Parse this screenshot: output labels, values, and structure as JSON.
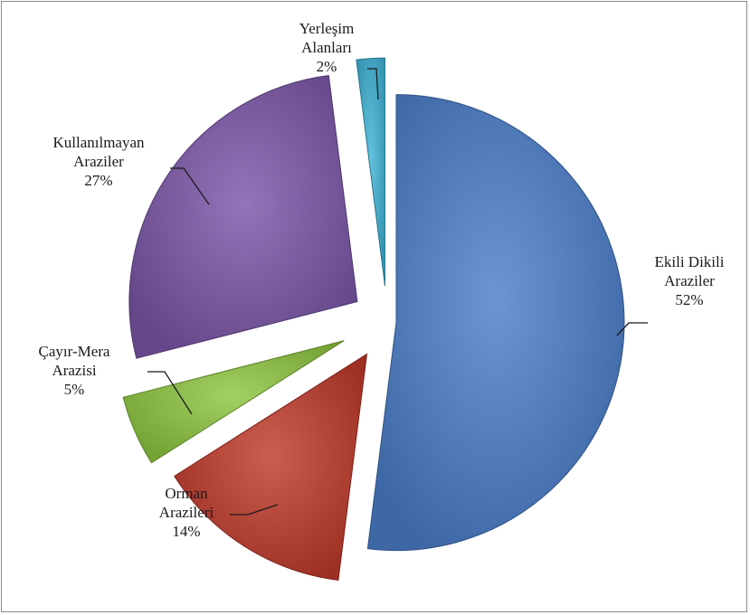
{
  "chart_data": {
    "type": "pie",
    "title": "",
    "exploded": true,
    "slices": [
      {
        "label_lines": [
          "Ekili Dikili",
          "Araziler"
        ],
        "value_label": "52%",
        "value": 52,
        "color": "#4a7ec9"
      },
      {
        "label_lines": [
          "Orman",
          "Arazileri"
        ],
        "value_label": "14%",
        "value": 14,
        "color": "#c0392b"
      },
      {
        "label_lines": [
          "Çayır-Mera",
          "Arazisi"
        ],
        "value_label": "5%",
        "value": 5,
        "color": "#8dc63f"
      },
      {
        "label_lines": [
          "Kullanılmayan",
          "Araziler"
        ],
        "value_label": "27%",
        "value": 27,
        "color": "#7b56a8"
      },
      {
        "label_lines": [
          "Yerleşim",
          "Alanları"
        ],
        "value_label": "2%",
        "value": 2,
        "color": "#3fb4d8"
      }
    ]
  }
}
